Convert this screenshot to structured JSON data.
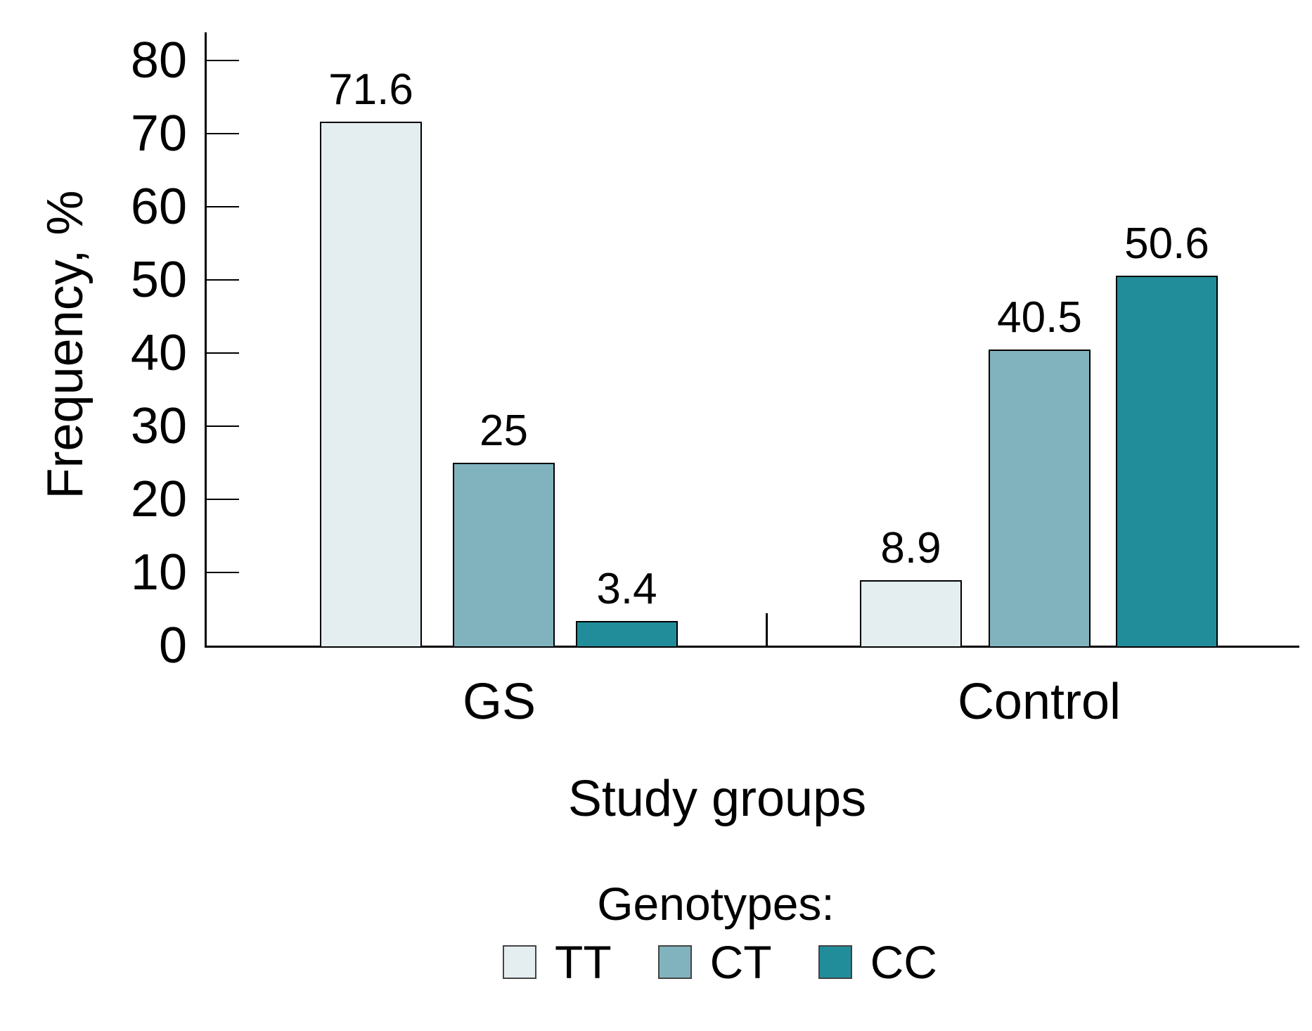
{
  "chart_data": {
    "type": "bar",
    "title": "",
    "ylabel": "Frequency, %",
    "xlabel": "Study groups",
    "ylim": [
      0,
      80
    ],
    "yticks": [
      0,
      10,
      20,
      30,
      40,
      50,
      60,
      70,
      80
    ],
    "grid": false,
    "categories": [
      "GS",
      "Control"
    ],
    "series": [
      {
        "name": "TT",
        "color": "#e4edf0",
        "border": "#000000",
        "values": [
          71.6,
          8.9
        ],
        "value_labels": [
          "71.6",
          "8.9"
        ]
      },
      {
        "name": "CT",
        "color": "#81b3be",
        "border": "#000000",
        "values": [
          25,
          40.5
        ],
        "value_labels": [
          "25",
          "40.5"
        ]
      },
      {
        "name": "CC",
        "color": "#218d9b",
        "border": "#000000",
        "values": [
          3.4,
          50.6
        ],
        "value_labels": [
          "3.4",
          "50.6"
        ]
      }
    ],
    "legend_title": "Genotypes:",
    "legend_position": "bottom-center",
    "axis_color": "#000000",
    "background": "#ffffff"
  }
}
